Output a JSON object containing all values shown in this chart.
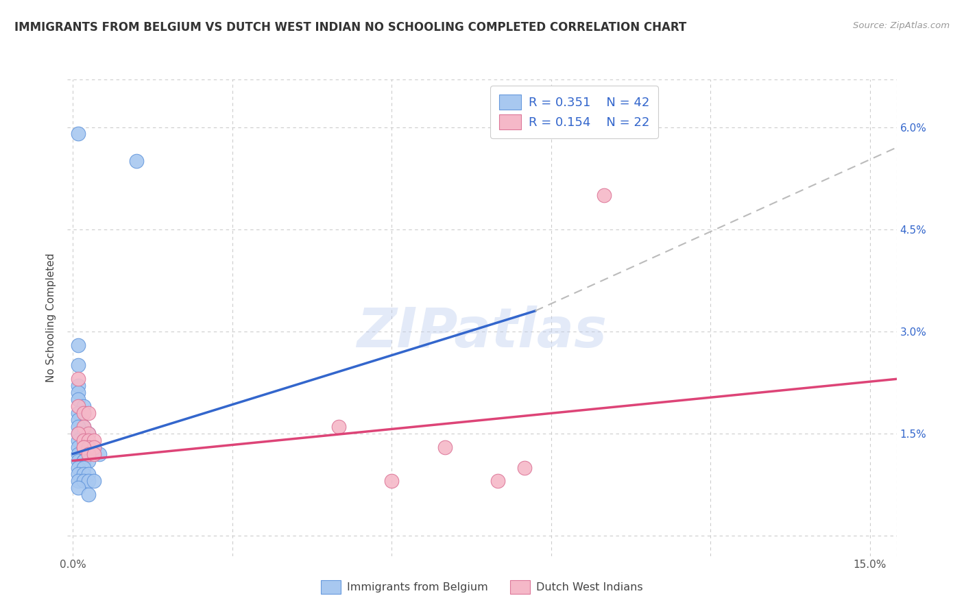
{
  "title": "IMMIGRANTS FROM BELGIUM VS DUTCH WEST INDIAN NO SCHOOLING COMPLETED CORRELATION CHART",
  "source": "Source: ZipAtlas.com",
  "ylabel": "No Schooling Completed",
  "x_ticks": [
    0.0,
    0.03,
    0.06,
    0.09,
    0.12,
    0.15
  ],
  "y_ticks": [
    0.0,
    0.015,
    0.03,
    0.045,
    0.06
  ],
  "y_tick_labels_right": [
    "",
    "1.5%",
    "3.0%",
    "4.5%",
    "6.0%"
  ],
  "xlim": [
    -0.001,
    0.155
  ],
  "ylim": [
    -0.003,
    0.067
  ],
  "legend_label1": "Immigrants from Belgium",
  "legend_label2": "Dutch West Indians",
  "R1": "0.351",
  "N1": "42",
  "R2": "0.154",
  "N2": "22",
  "blue_color": "#A8C8F0",
  "pink_color": "#F5B8C8",
  "blue_edge_color": "#6699DD",
  "pink_edge_color": "#DD7799",
  "blue_line_color": "#3366CC",
  "pink_line_color": "#DD4477",
  "dashed_line_color": "#BBBBBB",
  "blue_scatter": [
    [
      0.001,
      0.059
    ],
    [
      0.012,
      0.055
    ],
    [
      0.001,
      0.028
    ],
    [
      0.001,
      0.025
    ],
    [
      0.001,
      0.022
    ],
    [
      0.001,
      0.021
    ],
    [
      0.001,
      0.02
    ],
    [
      0.002,
      0.019
    ],
    [
      0.001,
      0.018
    ],
    [
      0.002,
      0.018
    ],
    [
      0.001,
      0.017
    ],
    [
      0.002,
      0.016
    ],
    [
      0.001,
      0.016
    ],
    [
      0.001,
      0.015
    ],
    [
      0.002,
      0.015
    ],
    [
      0.003,
      0.015
    ],
    [
      0.001,
      0.014
    ],
    [
      0.002,
      0.014
    ],
    [
      0.002,
      0.013
    ],
    [
      0.003,
      0.013
    ],
    [
      0.004,
      0.013
    ],
    [
      0.001,
      0.013
    ],
    [
      0.002,
      0.012
    ],
    [
      0.003,
      0.012
    ],
    [
      0.004,
      0.012
    ],
    [
      0.005,
      0.012
    ],
    [
      0.001,
      0.012
    ],
    [
      0.001,
      0.011
    ],
    [
      0.002,
      0.011
    ],
    [
      0.002,
      0.011
    ],
    [
      0.003,
      0.011
    ],
    [
      0.001,
      0.01
    ],
    [
      0.002,
      0.01
    ],
    [
      0.001,
      0.009
    ],
    [
      0.002,
      0.009
    ],
    [
      0.003,
      0.009
    ],
    [
      0.001,
      0.008
    ],
    [
      0.002,
      0.008
    ],
    [
      0.003,
      0.008
    ],
    [
      0.004,
      0.008
    ],
    [
      0.001,
      0.007
    ],
    [
      0.003,
      0.006
    ]
  ],
  "pink_scatter": [
    [
      0.001,
      0.023
    ],
    [
      0.001,
      0.019
    ],
    [
      0.002,
      0.018
    ],
    [
      0.003,
      0.018
    ],
    [
      0.002,
      0.016
    ],
    [
      0.003,
      0.015
    ],
    [
      0.001,
      0.015
    ],
    [
      0.002,
      0.014
    ],
    [
      0.003,
      0.014
    ],
    [
      0.004,
      0.014
    ],
    [
      0.002,
      0.013
    ],
    [
      0.003,
      0.013
    ],
    [
      0.004,
      0.013
    ],
    [
      0.002,
      0.013
    ],
    [
      0.003,
      0.012
    ],
    [
      0.004,
      0.012
    ],
    [
      0.05,
      0.016
    ],
    [
      0.06,
      0.008
    ],
    [
      0.07,
      0.013
    ],
    [
      0.08,
      0.008
    ],
    [
      0.085,
      0.01
    ],
    [
      0.1,
      0.05
    ]
  ],
  "blue_trend_x": [
    0.0,
    0.087
  ],
  "blue_trend_y": [
    0.012,
    0.033
  ],
  "dashed_trend_x": [
    0.087,
    0.155
  ],
  "dashed_trend_y": [
    0.033,
    0.057
  ],
  "pink_trend_x": [
    0.0,
    0.155
  ],
  "pink_trend_y": [
    0.011,
    0.023
  ],
  "watermark_text": "ZIPatlas",
  "background_color": "#FFFFFF",
  "grid_color": "#CCCCCC"
}
